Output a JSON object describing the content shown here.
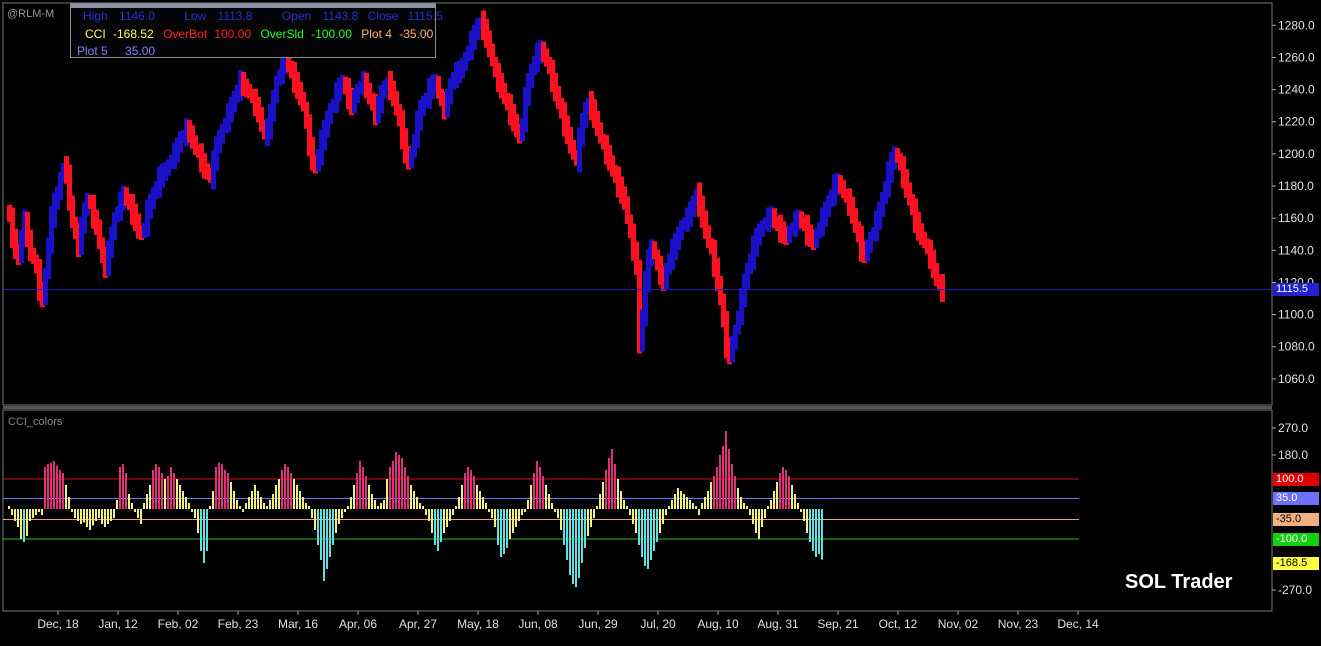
{
  "symbol": "@RLM-M",
  "info": {
    "high_label": "High",
    "high": "1146.0",
    "low_label": "Low",
    "low": "1113.8",
    "open_label": "Open",
    "open": "1143.8",
    "close_label": "Close",
    "close": "1115.5",
    "cci_label": "CCI",
    "cci": "-168.52",
    "overbot_label": "OverBot",
    "overbot": "100.00",
    "oversld_label": "OverSld",
    "oversld": "-100.00",
    "plot4_label": "Plot 4",
    "plot4": "-35.00",
    "plot5_label": "Plot 5",
    "plot5": "35.00"
  },
  "indicator_label": "CCI_colors",
  "brand": "SOL Trader",
  "colors": {
    "background": "#000000",
    "up_bar": "#1a10c8",
    "down_bar": "#ff1020",
    "cci_high": "#e0307a",
    "cci_mid": "#f0f080",
    "cci_low": "#60e0e0",
    "overbought_line": "#d01010",
    "plot5_line": "#7070ff",
    "plot4_line": "#e8a070",
    "oversold_line": "#20c020"
  },
  "chart_data": [
    {
      "type": "ohlc",
      "ylim": [
        1045,
        1292
      ],
      "y_ticks": [
        "1280.0",
        "1260.0",
        "1240.0",
        "1220.0",
        "1200.0",
        "1180.0",
        "1160.0",
        "1140.0",
        "1120.0",
        "1100.0",
        "1080.0",
        "1060.0"
      ],
      "y_tick_values": [
        1280,
        1260,
        1240,
        1220,
        1200,
        1180,
        1160,
        1140,
        1120,
        1100,
        1080,
        1060
      ],
      "last_price": 1115.5,
      "last_price_label": "1115.5",
      "x_labels": [
        "Dec, 18",
        "Jan, 12",
        "Feb, 02",
        "Feb, 23",
        "Mar, 16",
        "Apr, 06",
        "Apr, 27",
        "May, 18",
        "Jun, 08",
        "Jun, 29",
        "Jul, 20",
        "Aug, 10",
        "Aug, 31",
        "Sep, 21",
        "Oct, 12",
        "Nov, 02",
        "Nov, 23",
        "Dec, 14"
      ],
      "x_label_bar_index": [
        17,
        37,
        57,
        77,
        97,
        117,
        137,
        157,
        177,
        197,
        217,
        237,
        257,
        277,
        297,
        317,
        337,
        357
      ],
      "closes": [
        1160,
        1148,
        1140,
        1135,
        1150,
        1158,
        1148,
        1138,
        1135,
        1128,
        1115,
        1110,
        1125,
        1145,
        1160,
        1170,
        1175,
        1185,
        1192,
        1188,
        1170,
        1158,
        1150,
        1143,
        1155,
        1165,
        1172,
        1168,
        1160,
        1155,
        1145,
        1135,
        1130,
        1140,
        1150,
        1160,
        1165,
        1170,
        1175,
        1172,
        1168,
        1163,
        1158,
        1152,
        1150,
        1155,
        1165,
        1170,
        1175,
        1180,
        1185,
        1188,
        1190,
        1193,
        1197,
        1200,
        1205,
        1210,
        1212,
        1215,
        1213,
        1208,
        1203,
        1200,
        1195,
        1190,
        1188,
        1185,
        1195,
        1205,
        1210,
        1215,
        1220,
        1225,
        1230,
        1235,
        1240,
        1245,
        1242,
        1240,
        1238,
        1234,
        1230,
        1225,
        1218,
        1212,
        1215,
        1225,
        1235,
        1245,
        1250,
        1255,
        1258,
        1255,
        1250,
        1245,
        1240,
        1235,
        1230,
        1218,
        1205,
        1195,
        1192,
        1200,
        1208,
        1215,
        1222,
        1228,
        1232,
        1238,
        1242,
        1245,
        1240,
        1235,
        1230,
        1235,
        1240,
        1243,
        1245,
        1240,
        1235,
        1230,
        1225,
        1230,
        1238,
        1242,
        1245,
        1240,
        1235,
        1228,
        1220,
        1210,
        1200,
        1195,
        1200,
        1210,
        1220,
        1228,
        1232,
        1235,
        1240,
        1243,
        1245,
        1238,
        1232,
        1228,
        1235,
        1243,
        1248,
        1250,
        1252,
        1255,
        1260,
        1265,
        1270,
        1275,
        1280,
        1282,
        1278,
        1272,
        1265,
        1258,
        1250,
        1245,
        1240,
        1235,
        1230,
        1225,
        1220,
        1215,
        1210,
        1220,
        1235,
        1245,
        1252,
        1258,
        1262,
        1265,
        1262,
        1258,
        1252,
        1245,
        1238,
        1232,
        1225,
        1218,
        1212,
        1205,
        1200,
        1195,
        1210,
        1220,
        1228,
        1232,
        1228,
        1222,
        1216,
        1210,
        1205,
        1200,
        1195,
        1190,
        1185,
        1180,
        1175,
        1170,
        1160,
        1150,
        1140,
        1130,
        1080,
        1100,
        1120,
        1135,
        1142,
        1138,
        1130,
        1125,
        1120,
        1128,
        1135,
        1140,
        1145,
        1150,
        1155,
        1158,
        1160,
        1165,
        1170,
        1175,
        1168,
        1160,
        1152,
        1145,
        1140,
        1130,
        1120,
        1110,
        1095,
        1080,
        1075,
        1082,
        1090,
        1100,
        1110,
        1120,
        1128,
        1135,
        1142,
        1148,
        1152,
        1155,
        1158,
        1160,
        1162,
        1158,
        1155,
        1152,
        1150,
        1148,
        1152,
        1155,
        1158,
        1160,
        1158,
        1155,
        1150,
        1148,
        1145,
        1150,
        1155,
        1160,
        1165,
        1170,
        1175,
        1180,
        1182,
        1180,
        1176,
        1172,
        1168,
        1162,
        1155,
        1148,
        1140,
        1138,
        1142,
        1148,
        1152,
        1158,
        1165,
        1172,
        1180,
        1188,
        1195,
        1200,
        1198,
        1192,
        1185,
        1178,
        1172,
        1165,
        1158,
        1152,
        1148,
        1145,
        1140,
        1135,
        1128,
        1122,
        1118,
        1115
      ]
    },
    {
      "type": "bar",
      "title": "CCI_colors",
      "ylim": [
        -330,
        320
      ],
      "y_ticks": [
        "270.0",
        "180.0",
        "-270.0"
      ],
      "y_tick_values": [
        270,
        180,
        -270
      ],
      "levels": [
        {
          "label": "100.0",
          "value": 100
        },
        {
          "label": "35.0",
          "value": 35
        },
        {
          "label": "-35.0",
          "value": -35
        },
        {
          "label": "-100.0",
          "value": -100
        }
      ],
      "last_value": -168.52,
      "last_value_label": "-168.5",
      "values": [
        10,
        -20,
        -40,
        -60,
        -100,
        -110,
        -90,
        -40,
        -30,
        -20,
        -10,
        -20,
        140,
        150,
        155,
        160,
        145,
        130,
        120,
        80,
        40,
        -10,
        -30,
        -40,
        -50,
        -45,
        -60,
        -70,
        -55,
        -40,
        -30,
        -50,
        -60,
        -50,
        -40,
        -30,
        30,
        140,
        150,
        120,
        50,
        20,
        -10,
        -30,
        -50,
        20,
        50,
        80,
        130,
        150,
        140,
        120,
        100,
        110,
        140,
        120,
        100,
        80,
        60,
        40,
        20,
        -10,
        -30,
        -80,
        -140,
        -180,
        -140,
        10,
        60,
        140,
        155,
        150,
        130,
        120,
        90,
        60,
        30,
        10,
        -10,
        20,
        40,
        60,
        80,
        60,
        40,
        20,
        10,
        30,
        50,
        80,
        100,
        130,
        150,
        140,
        120,
        100,
        80,
        60,
        40,
        20,
        10,
        -30,
        -70,
        -120,
        -170,
        -240,
        -200,
        -160,
        -120,
        -80,
        -50,
        -30,
        -10,
        10,
        40,
        80,
        120,
        160,
        140,
        110,
        80,
        50,
        30,
        10,
        20,
        30,
        100,
        140,
        160,
        190,
        180,
        170,
        140,
        110,
        80,
        60,
        40,
        20,
        10,
        -20,
        -40,
        -80,
        -120,
        -140,
        -110,
        -80,
        -60,
        -40,
        -20,
        10,
        40,
        80,
        120,
        140,
        130,
        110,
        80,
        60,
        40,
        20,
        -10,
        -30,
        -60,
        -120,
        -160,
        -150,
        -130,
        -100,
        -80,
        -60,
        -40,
        -20,
        -10,
        30,
        80,
        120,
        160,
        140,
        110,
        80,
        50,
        20,
        -10,
        -30,
        -70,
        -120,
        -170,
        -220,
        -250,
        -260,
        -230,
        -180,
        -130,
        -90,
        -60,
        -30,
        10,
        50,
        90,
        130,
        170,
        200,
        150,
        100,
        60,
        30,
        10,
        -20,
        -50,
        -80,
        -120,
        -160,
        -190,
        -200,
        -170,
        -140,
        -110,
        -80,
        -50,
        -20,
        10,
        30,
        50,
        70,
        60,
        50,
        40,
        30,
        20,
        10,
        -20,
        20,
        40,
        60,
        90,
        110,
        140,
        180,
        210,
        260,
        200,
        150,
        110,
        70,
        40,
        20,
        10,
        -20,
        -50,
        -80,
        -100,
        -60,
        -30,
        10,
        30,
        60,
        90,
        120,
        140,
        130,
        110,
        80,
        50,
        20,
        -10,
        -40,
        -80,
        -110,
        -140,
        -160,
        -150,
        -168.52
      ]
    }
  ]
}
